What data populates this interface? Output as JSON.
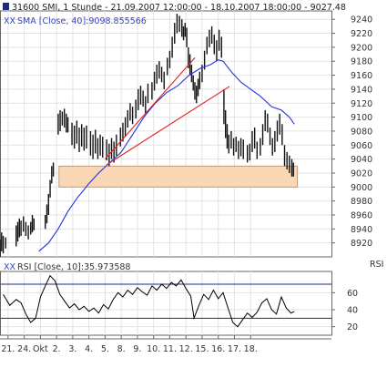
{
  "chart_data": [
    {
      "type": "ohlc",
      "title": "31600  SMI, 1 Stunde - 21.09.2007 12:00:00 - 18.10.2007 18:00:00 - 9027.48",
      "legend": "SMA [Close, 40]:9098.855566",
      "y_ticks": [
        8920,
        8940,
        8960,
        8980,
        9000,
        9020,
        9040,
        9060,
        9080,
        9100,
        9120,
        9140,
        9160,
        9180,
        9200,
        9220,
        9240
      ],
      "ylim": [
        8900,
        9252
      ],
      "x_categories": [
        "21.",
        "24.",
        "Okt",
        "2.",
        "3.",
        "4.",
        "5.",
        "8.",
        "9.",
        "10.",
        "11.",
        "12.",
        "15.",
        "16.",
        "17.",
        "18."
      ],
      "x_range": [
        0,
        20.5
      ],
      "grid": true,
      "series": [
        {
          "name": "SMI",
          "kind": "price_bars",
          "values": [
            [
              0.0,
              8925,
              8900
            ],
            [
              0.1,
              8935,
              8908
            ],
            [
              0.2,
              8930,
              8905
            ],
            [
              0.35,
              8928,
              8912
            ],
            [
              1.0,
              8945,
              8915
            ],
            [
              1.1,
              8950,
              8922
            ],
            [
              1.2,
              8955,
              8928
            ],
            [
              1.3,
              8952,
              8930
            ],
            [
              1.45,
              8958,
              8936
            ],
            [
              1.6,
              8950,
              8930
            ],
            [
              1.75,
              8945,
              8925
            ],
            [
              1.9,
              8950,
              8932
            ],
            [
              2.0,
              8960,
              8935
            ],
            [
              2.1,
              8955,
              8938
            ],
            [
              2.8,
              8960,
              8940
            ],
            [
              2.9,
              8975,
              8948
            ],
            [
              3.0,
              8990,
              8960
            ],
            [
              3.1,
              9010,
              8985
            ],
            [
              3.2,
              9030,
              9005
            ],
            [
              3.3,
              9035,
              9015
            ],
            [
              3.6,
              9105,
              9075
            ],
            [
              3.72,
              9110,
              9080
            ],
            [
              3.85,
              9108,
              9088
            ],
            [
              3.98,
              9112,
              9085
            ],
            [
              4.1,
              9105,
              9078
            ],
            [
              4.2,
              9100,
              9078
            ],
            [
              4.45,
              9092,
              9060
            ],
            [
              4.6,
              9088,
              9055
            ],
            [
              4.75,
              9095,
              9062
            ],
            [
              4.9,
              9085,
              9050
            ],
            [
              5.05,
              9090,
              9058
            ],
            [
              5.2,
              9085,
              9052
            ],
            [
              5.35,
              9088,
              9055
            ],
            [
              5.6,
              9080,
              9045
            ],
            [
              5.75,
              9075,
              9040
            ],
            [
              5.9,
              9082,
              9048
            ],
            [
              6.05,
              9070,
              9040
            ],
            [
              6.2,
              9075,
              9045
            ],
            [
              6.35,
              9072,
              9042
            ],
            [
              6.6,
              9068,
              9038
            ],
            [
              6.75,
              9062,
              9030
            ],
            [
              6.9,
              9070,
              9040
            ],
            [
              7.05,
              9065,
              9035
            ],
            [
              7.2,
              9075,
              9045
            ],
            [
              7.45,
              9085,
              9058
            ],
            [
              7.6,
              9092,
              9065
            ],
            [
              7.75,
              9100,
              9072
            ],
            [
              7.9,
              9110,
              9085
            ],
            [
              8.05,
              9120,
              9095
            ],
            [
              8.2,
              9115,
              9090
            ],
            [
              8.4,
              9125,
              9098
            ],
            [
              8.55,
              9140,
              9110
            ],
            [
              8.7,
              9145,
              9118
            ],
            [
              8.85,
              9138,
              9115
            ],
            [
              9.0,
              9130,
              9105
            ],
            [
              9.15,
              9148,
              9120
            ],
            [
              9.4,
              9150,
              9125
            ],
            [
              9.55,
              9165,
              9138
            ],
            [
              9.7,
              9175,
              9148
            ],
            [
              9.85,
              9180,
              9155
            ],
            [
              10.0,
              9172,
              9150
            ],
            [
              10.15,
              9165,
              9140
            ],
            [
              10.35,
              9185,
              9160
            ],
            [
              10.5,
              9195,
              9170
            ],
            [
              10.65,
              9215,
              9185
            ],
            [
              10.8,
              9235,
              9205
            ],
            [
              10.95,
              9248,
              9220
            ],
            [
              11.1,
              9245,
              9222
            ],
            [
              11.25,
              9240,
              9215
            ],
            [
              11.35,
              9230,
              9210
            ],
            [
              11.45,
              9235,
              9215
            ],
            [
              11.55,
              9228,
              9200
            ],
            [
              11.65,
              9200,
              9170
            ],
            [
              11.75,
              9190,
              9160
            ],
            [
              11.85,
              9175,
              9150
            ],
            [
              11.95,
              9160,
              9138
            ],
            [
              12.05,
              9150,
              9125
            ],
            [
              12.15,
              9145,
              9120
            ],
            [
              12.25,
              9155,
              9130
            ],
            [
              12.35,
              9165,
              9140
            ],
            [
              12.5,
              9175,
              9150
            ],
            [
              12.65,
              9195,
              9168
            ],
            [
              12.8,
              9215,
              9190
            ],
            [
              12.95,
              9225,
              9200
            ],
            [
              13.1,
              9230,
              9205
            ],
            [
              13.25,
              9218,
              9190
            ],
            [
              13.4,
              9210,
              9180
            ],
            [
              13.55,
              9225,
              9195
            ],
            [
              13.7,
              9215,
              9185
            ],
            [
              13.85,
              9140,
              9090
            ],
            [
              13.95,
              9110,
              9070
            ],
            [
              14.05,
              9090,
              9055
            ],
            [
              14.15,
              9075,
              9048
            ],
            [
              14.3,
              9080,
              9055
            ],
            [
              14.45,
              9070,
              9045
            ],
            [
              14.6,
              9072,
              9050
            ],
            [
              14.75,
              9066,
              9040
            ],
            [
              14.9,
              9070,
              9044
            ],
            [
              15.05,
              9068,
              9040
            ],
            [
              15.3,
              9060,
              9035
            ],
            [
              15.45,
              9062,
              9038
            ],
            [
              15.6,
              9080,
              9050
            ],
            [
              15.75,
              9085,
              9055
            ],
            [
              15.9,
              9065,
              9040
            ],
            [
              16.1,
              9070,
              9045
            ],
            [
              16.25,
              9090,
              9060
            ],
            [
              16.4,
              9110,
              9080
            ],
            [
              16.55,
              9105,
              9078
            ],
            [
              16.7,
              9085,
              9060
            ],
            [
              16.85,
              9070,
              9045
            ],
            [
              17.0,
              9080,
              9050
            ],
            [
              17.15,
              9095,
              9065
            ],
            [
              17.3,
              9105,
              9075
            ],
            [
              17.45,
              9090,
              9060
            ],
            [
              17.6,
              9060,
              9030
            ],
            [
              17.75,
              9050,
              9025
            ],
            [
              17.9,
              9045,
              9020
            ],
            [
              18.05,
              9040,
              9015
            ],
            [
              18.15,
              9035,
              9015
            ]
          ]
        },
        {
          "name": "SMA [Close, 40]",
          "kind": "line",
          "color": "#2233dd",
          "points": [
            [
              2.4,
              8908
            ],
            [
              3.0,
              8920
            ],
            [
              3.6,
              8940
            ],
            [
              4.2,
              8965
            ],
            [
              4.8,
              8985
            ],
            [
              5.5,
              9005
            ],
            [
              6.1,
              9020
            ],
            [
              6.8,
              9035
            ],
            [
              7.5,
              9050
            ],
            [
              8.2,
              9075
            ],
            [
              8.9,
              9100
            ],
            [
              9.6,
              9120
            ],
            [
              10.3,
              9135
            ],
            [
              11.0,
              9145
            ],
            [
              11.7,
              9160
            ],
            [
              12.4,
              9170
            ],
            [
              13.0,
              9175
            ],
            [
              13.5,
              9182
            ],
            [
              13.8,
              9180
            ],
            [
              14.3,
              9165
            ],
            [
              14.9,
              9150
            ],
            [
              15.5,
              9140
            ],
            [
              16.1,
              9130
            ],
            [
              16.8,
              9115
            ],
            [
              17.4,
              9110
            ],
            [
              17.9,
              9100
            ],
            [
              18.2,
              9090
            ]
          ]
        },
        {
          "name": "Trendlinie 1",
          "kind": "line",
          "color": "#dd2222",
          "points": [
            [
              6.5,
              9040
            ],
            [
              12.05,
              9185
            ]
          ]
        },
        {
          "name": "Trendlinie 2",
          "kind": "line",
          "color": "#dd2222",
          "points": [
            [
              6.6,
              9032
            ],
            [
              14.2,
              9144
            ]
          ]
        },
        {
          "name": "Unterstuetzungszone",
          "kind": "zone",
          "color": "#f9d6b4",
          "x_start": 3.65,
          "x_end": 18.4,
          "y_low": 9000,
          "y_high": 9030
        }
      ]
    },
    {
      "type": "line",
      "title": "RSI [Close, 10]:35.973588",
      "ylabel": "RSI",
      "y_ticks": [
        20,
        40,
        60
      ],
      "ylim": [
        10,
        85
      ],
      "x_range": [
        0,
        20.5
      ],
      "reference_lines": [
        30,
        70
      ],
      "series": [
        {
          "name": "RSI [Close, 10]",
          "color": "#000000",
          "points": [
            [
              0.2,
              58
            ],
            [
              0.6,
              45
            ],
            [
              1.0,
              52
            ],
            [
              1.3,
              48
            ],
            [
              1.6,
              35
            ],
            [
              1.9,
              25
            ],
            [
              2.2,
              30
            ],
            [
              2.5,
              55
            ],
            [
              2.8,
              68
            ],
            [
              3.1,
              80
            ],
            [
              3.4,
              74
            ],
            [
              3.7,
              58
            ],
            [
              4.0,
              50
            ],
            [
              4.3,
              42
            ],
            [
              4.6,
              47
            ],
            [
              4.9,
              40
            ],
            [
              5.2,
              44
            ],
            [
              5.5,
              38
            ],
            [
              5.8,
              42
            ],
            [
              6.1,
              36
            ],
            [
              6.4,
              46
            ],
            [
              6.7,
              41
            ],
            [
              7.0,
              52
            ],
            [
              7.3,
              60
            ],
            [
              7.6,
              55
            ],
            [
              7.9,
              63
            ],
            [
              8.2,
              58
            ],
            [
              8.5,
              66
            ],
            [
              8.8,
              61
            ],
            [
              9.1,
              57
            ],
            [
              9.4,
              68
            ],
            [
              9.7,
              63
            ],
            [
              10.0,
              70
            ],
            [
              10.3,
              65
            ],
            [
              10.6,
              72
            ],
            [
              10.9,
              68
            ],
            [
              11.2,
              75
            ],
            [
              11.5,
              65
            ],
            [
              11.8,
              56
            ],
            [
              12.0,
              30
            ],
            [
              12.3,
              45
            ],
            [
              12.6,
              58
            ],
            [
              12.9,
              52
            ],
            [
              13.2,
              63
            ],
            [
              13.5,
              53
            ],
            [
              13.8,
              60
            ],
            [
              14.1,
              42
            ],
            [
              14.4,
              25
            ],
            [
              14.7,
              20
            ],
            [
              15.0,
              28
            ],
            [
              15.3,
              36
            ],
            [
              15.6,
              31
            ],
            [
              15.9,
              37
            ],
            [
              16.2,
              48
            ],
            [
              16.5,
              53
            ],
            [
              16.8,
              40
            ],
            [
              17.1,
              35
            ],
            [
              17.4,
              55
            ],
            [
              17.7,
              42
            ],
            [
              18.0,
              36
            ],
            [
              18.2,
              38
            ]
          ]
        }
      ]
    }
  ]
}
